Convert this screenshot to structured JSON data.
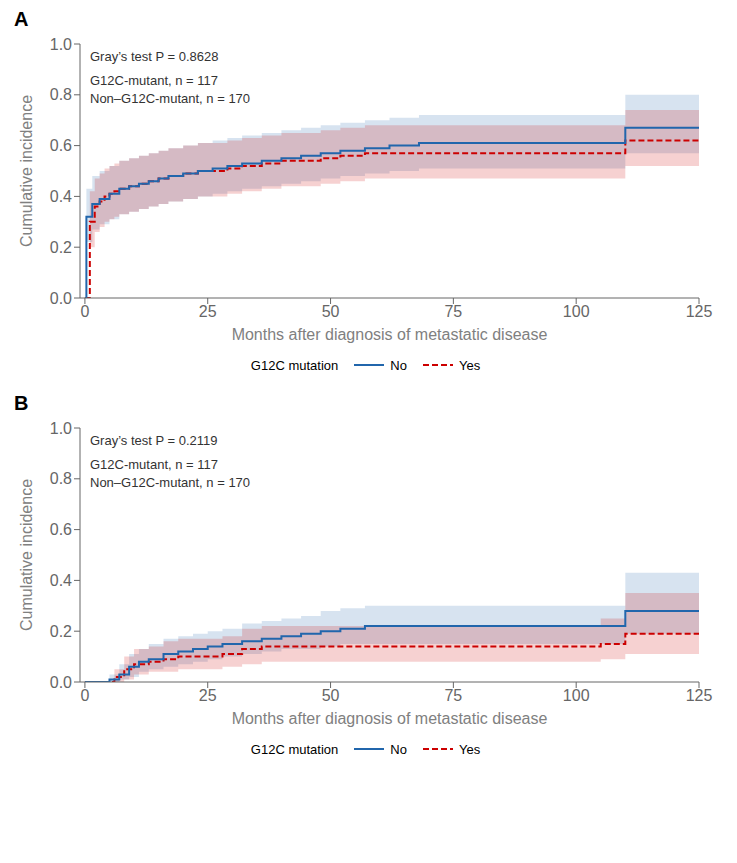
{
  "chart_data": [
    {
      "type": "step",
      "title": "A",
      "annotations": [
        "Gray’s test P = 0.8628",
        "G12C-mutant, n = 117",
        "Non–G12C-mutant, n = 170"
      ],
      "x_label": "Months after diagnosis of metastatic disease",
      "y_label": "Cumulative incidence",
      "xlim": [
        -1,
        125
      ],
      "ylim": [
        0.0,
        1.0
      ],
      "xticks": [
        0,
        25,
        50,
        75,
        100,
        125
      ],
      "yticks": [
        {
          "value": 0,
          "label": "0.0"
        },
        0.2,
        0.4,
        0.6,
        0.8,
        {
          "value": 1,
          "label": "1.0"
        }
      ],
      "legend": "bottom",
      "legend_title": "G12C mutation",
      "series": [
        {
          "name": "No",
          "color": "#2166ac",
          "line_style": "solid",
          "x": [
            0,
            0.3,
            1.5,
            3,
            5,
            7,
            9,
            11,
            13,
            15,
            17,
            20,
            23,
            26,
            29,
            32,
            36,
            40,
            44,
            48,
            52,
            57,
            62,
            68,
            75,
            82,
            90,
            100,
            110,
            115,
            125
          ],
          "values": [
            0,
            0.32,
            0.37,
            0.39,
            0.41,
            0.43,
            0.44,
            0.45,
            0.46,
            0.47,
            0.48,
            0.49,
            0.5,
            0.51,
            0.52,
            0.53,
            0.54,
            0.55,
            0.56,
            0.57,
            0.58,
            0.59,
            0.6,
            0.61,
            0.61,
            0.61,
            0.61,
            0.61,
            0.67,
            0.67,
            0.67
          ],
          "lower": [
            0,
            0.22,
            0.27,
            0.29,
            0.31,
            0.33,
            0.34,
            0.35,
            0.36,
            0.37,
            0.38,
            0.39,
            0.4,
            0.41,
            0.42,
            0.43,
            0.44,
            0.45,
            0.46,
            0.47,
            0.48,
            0.49,
            0.5,
            0.51,
            0.51,
            0.51,
            0.51,
            0.51,
            0.57,
            0.57,
            0.57
          ],
          "upper": [
            0,
            0.43,
            0.48,
            0.5,
            0.52,
            0.54,
            0.55,
            0.56,
            0.57,
            0.58,
            0.59,
            0.6,
            0.61,
            0.62,
            0.63,
            0.64,
            0.65,
            0.66,
            0.67,
            0.68,
            0.69,
            0.7,
            0.71,
            0.72,
            0.72,
            0.72,
            0.72,
            0.72,
            0.8,
            0.8,
            0.8
          ]
        },
        {
          "name": "Yes",
          "color": "#cc0000",
          "line_style": "dashed",
          "x": [
            0,
            1,
            2,
            3,
            4,
            5,
            6,
            7,
            8,
            9,
            11,
            13,
            15,
            17,
            20,
            23,
            26,
            29,
            32,
            36,
            40,
            44,
            48,
            52,
            57,
            62,
            68,
            75,
            82,
            90,
            100,
            110,
            115,
            120,
            125
          ],
          "values": [
            0,
            0.3,
            0.36,
            0.38,
            0.4,
            0.41,
            0.42,
            0.43,
            0.43,
            0.44,
            0.45,
            0.46,
            0.47,
            0.48,
            0.49,
            0.5,
            0.5,
            0.51,
            0.52,
            0.53,
            0.54,
            0.54,
            0.55,
            0.56,
            0.57,
            0.57,
            0.57,
            0.57,
            0.57,
            0.57,
            0.57,
            0.62,
            0.62,
            0.62,
            0.62
          ],
          "lower": [
            0,
            0.2,
            0.26,
            0.28,
            0.3,
            0.31,
            0.32,
            0.33,
            0.33,
            0.34,
            0.35,
            0.36,
            0.37,
            0.38,
            0.39,
            0.4,
            0.4,
            0.41,
            0.42,
            0.43,
            0.44,
            0.44,
            0.45,
            0.46,
            0.47,
            0.47,
            0.47,
            0.47,
            0.47,
            0.47,
            0.47,
            0.52,
            0.52,
            0.52,
            0.52
          ],
          "upper": [
            0,
            0.42,
            0.47,
            0.49,
            0.51,
            0.52,
            0.53,
            0.54,
            0.54,
            0.55,
            0.56,
            0.57,
            0.58,
            0.59,
            0.6,
            0.61,
            0.61,
            0.62,
            0.63,
            0.64,
            0.65,
            0.65,
            0.66,
            0.67,
            0.68,
            0.68,
            0.68,
            0.68,
            0.68,
            0.68,
            0.68,
            0.74,
            0.74,
            0.74,
            0.78
          ]
        }
      ]
    },
    {
      "type": "step",
      "title": "B",
      "annotations": [
        "Gray’s test P = 0.2119",
        "G12C-mutant, n = 117",
        "Non–G12C-mutant, n = 170"
      ],
      "x_label": "Months after diagnosis of metastatic disease",
      "y_label": "Cumulative incidence",
      "xlim": [
        -1,
        125
      ],
      "ylim": [
        0.0,
        1.0
      ],
      "xticks": [
        0,
        25,
        50,
        75,
        100,
        125
      ],
      "yticks": [
        {
          "value": 0,
          "label": "0.0"
        },
        0.2,
        0.4,
        0.6,
        0.8,
        {
          "value": 1,
          "label": "1.0"
        }
      ],
      "legend": "bottom",
      "legend_title": "G12C mutation",
      "series": [
        {
          "name": "No",
          "color": "#2166ac",
          "line_style": "solid",
          "x": [
            0,
            3,
            5,
            7,
            9,
            11,
            13,
            16,
            19,
            22,
            25,
            28,
            32,
            36,
            40,
            44,
            48,
            52,
            57,
            62,
            68,
            75,
            82,
            90,
            100,
            110,
            115,
            125
          ],
          "values": [
            0,
            0.0,
            0.01,
            0.03,
            0.06,
            0.08,
            0.09,
            0.11,
            0.12,
            0.13,
            0.14,
            0.15,
            0.16,
            0.17,
            0.18,
            0.19,
            0.2,
            0.21,
            0.22,
            0.22,
            0.22,
            0.22,
            0.22,
            0.22,
            0.22,
            0.28,
            0.28,
            0.28
          ],
          "lower": [
            0,
            0.0,
            0.0,
            0.01,
            0.02,
            0.04,
            0.05,
            0.06,
            0.07,
            0.08,
            0.09,
            0.1,
            0.11,
            0.12,
            0.13,
            0.13,
            0.14,
            0.15,
            0.15,
            0.15,
            0.15,
            0.15,
            0.15,
            0.15,
            0.15,
            0.19,
            0.19,
            0.19
          ],
          "upper": [
            0,
            0.0,
            0.03,
            0.07,
            0.11,
            0.13,
            0.15,
            0.17,
            0.18,
            0.19,
            0.2,
            0.21,
            0.23,
            0.24,
            0.25,
            0.26,
            0.28,
            0.29,
            0.3,
            0.3,
            0.3,
            0.3,
            0.3,
            0.3,
            0.3,
            0.43,
            0.43,
            0.43
          ]
        },
        {
          "name": "Yes",
          "color": "#cc0000",
          "line_style": "dashed",
          "x": [
            0,
            4,
            6,
            8,
            10,
            13,
            16,
            19,
            22,
            25,
            28,
            32,
            36,
            40,
            44,
            48,
            52,
            57,
            62,
            68,
            75,
            82,
            90,
            100,
            105,
            110,
            115,
            120,
            125
          ],
          "values": [
            0,
            0.0,
            0.02,
            0.05,
            0.07,
            0.08,
            0.09,
            0.1,
            0.1,
            0.1,
            0.11,
            0.13,
            0.14,
            0.14,
            0.14,
            0.14,
            0.14,
            0.14,
            0.14,
            0.14,
            0.14,
            0.14,
            0.14,
            0.14,
            0.15,
            0.19,
            0.19,
            0.19,
            0.19
          ],
          "lower": [
            0,
            0.0,
            0.0,
            0.01,
            0.03,
            0.04,
            0.04,
            0.05,
            0.05,
            0.05,
            0.06,
            0.07,
            0.08,
            0.08,
            0.08,
            0.08,
            0.08,
            0.08,
            0.08,
            0.08,
            0.08,
            0.08,
            0.08,
            0.08,
            0.09,
            0.11,
            0.11,
            0.11,
            0.11
          ],
          "upper": [
            0,
            0.0,
            0.05,
            0.1,
            0.13,
            0.14,
            0.16,
            0.17,
            0.17,
            0.17,
            0.18,
            0.21,
            0.22,
            0.22,
            0.22,
            0.22,
            0.22,
            0.22,
            0.22,
            0.22,
            0.22,
            0.22,
            0.22,
            0.22,
            0.25,
            0.35,
            0.35,
            0.35,
            0.39
          ]
        }
      ]
    }
  ]
}
